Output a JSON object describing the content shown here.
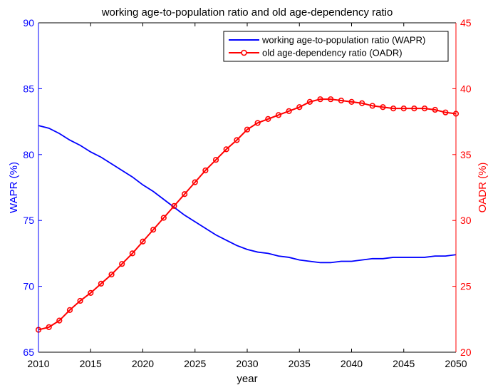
{
  "chart_data": {
    "type": "line",
    "title": "working age-to-population ratio and old age-dependency ratio",
    "xlabel": "year",
    "ylabel_left": "WAPR (%)",
    "ylabel_right": "OADR (%)",
    "xlim": [
      2010,
      2050
    ],
    "ylim_left": [
      65,
      90
    ],
    "ylim_right": [
      20,
      45
    ],
    "x_ticks": [
      2010,
      2015,
      2020,
      2025,
      2030,
      2035,
      2040,
      2045,
      2050
    ],
    "y_ticks_left": [
      65,
      70,
      75,
      80,
      85,
      90
    ],
    "y_ticks_right": [
      20,
      25,
      30,
      35,
      40,
      45
    ],
    "grid": false,
    "legend_position": "top-right",
    "colors": {
      "left_axis": "#0000ff",
      "right_axis": "#ff0000",
      "axes": "#000000"
    },
    "x": [
      2010,
      2011,
      2012,
      2013,
      2014,
      2015,
      2016,
      2017,
      2018,
      2019,
      2020,
      2021,
      2022,
      2023,
      2024,
      2025,
      2026,
      2027,
      2028,
      2029,
      2030,
      2031,
      2032,
      2033,
      2034,
      2035,
      2036,
      2037,
      2038,
      2039,
      2040,
      2041,
      2042,
      2043,
      2044,
      2045,
      2046,
      2047,
      2048,
      2049,
      2050
    ],
    "series": [
      {
        "name": "working age-to-population ratio (WAPR)",
        "axis": "left",
        "color": "#0000ff",
        "marker": "none",
        "values": [
          82.2,
          82.0,
          81.6,
          81.1,
          80.7,
          80.2,
          79.8,
          79.3,
          78.8,
          78.3,
          77.7,
          77.2,
          76.6,
          76.0,
          75.4,
          74.9,
          74.4,
          73.9,
          73.5,
          73.1,
          72.8,
          72.6,
          72.5,
          72.3,
          72.2,
          72.0,
          71.9,
          71.8,
          71.8,
          71.9,
          71.9,
          72.0,
          72.1,
          72.1,
          72.2,
          72.2,
          72.2,
          72.2,
          72.3,
          72.3,
          72.4
        ]
      },
      {
        "name": "old age-dependency ratio (OADR)",
        "axis": "right",
        "color": "#ff0000",
        "marker": "circle",
        "values": [
          21.7,
          21.9,
          22.4,
          23.2,
          23.9,
          24.5,
          25.2,
          25.9,
          26.7,
          27.5,
          28.4,
          29.3,
          30.2,
          31.1,
          32.0,
          32.9,
          33.8,
          34.6,
          35.4,
          36.1,
          36.9,
          37.4,
          37.7,
          38.0,
          38.3,
          38.6,
          39.0,
          39.2,
          39.2,
          39.1,
          39.0,
          38.9,
          38.7,
          38.6,
          38.5,
          38.5,
          38.5,
          38.5,
          38.4,
          38.2,
          38.1
        ]
      }
    ]
  }
}
